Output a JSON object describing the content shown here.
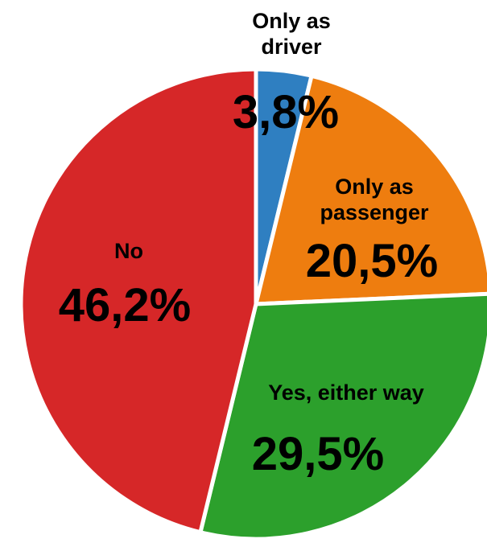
{
  "chart_data": {
    "type": "pie",
    "categories": [
      "Only as driver",
      "Only as passenger",
      "Yes, either way",
      "No"
    ],
    "values": [
      3.8,
      20.5,
      29.5,
      46.2
    ],
    "value_labels": [
      "3,8%",
      "20,5%",
      "29,5%",
      "46,2%"
    ],
    "colors": [
      "#2f7fc1",
      "#ee7d0f",
      "#2ca02c",
      "#d62728"
    ]
  }
}
